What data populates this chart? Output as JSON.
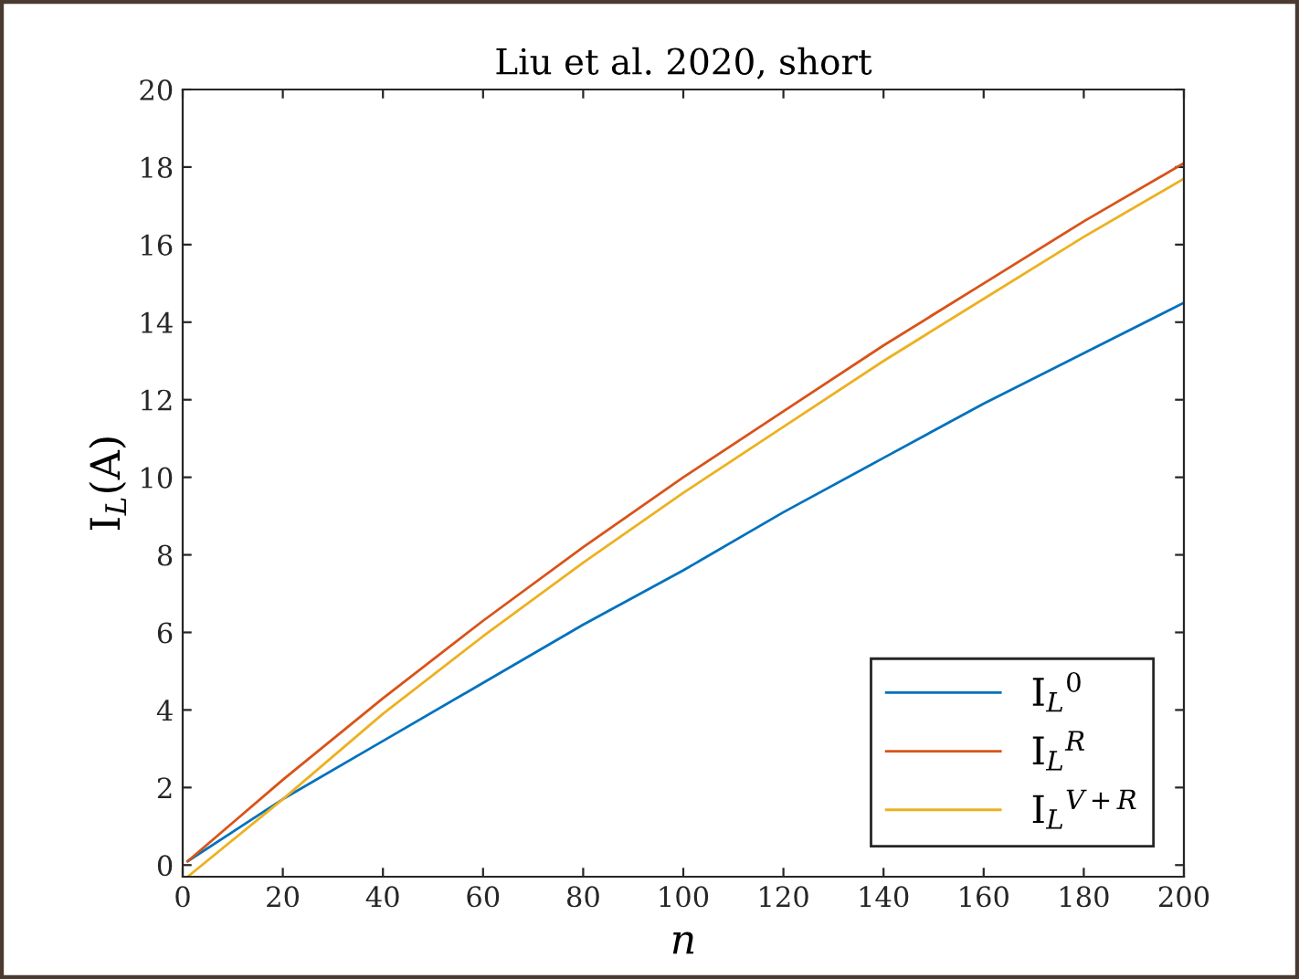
{
  "chart_data": {
    "type": "line",
    "title": "Liu et al. 2020, short",
    "xlabel": "n",
    "ylabel": "I$_{L}$(A)",
    "x": [
      1,
      20,
      40,
      60,
      80,
      100,
      120,
      140,
      160,
      180,
      200
    ],
    "series": [
      {
        "name": "I$_{L}$$^{0}$",
        "color": "#0072bd",
        "values": [
          0.1,
          1.7,
          3.2,
          4.7,
          6.2,
          7.6,
          9.1,
          10.5,
          11.9,
          13.2,
          14.5
        ]
      },
      {
        "name": "I$_{L}$$^{R}$",
        "color": "#d95319",
        "values": [
          0.1,
          2.2,
          4.3,
          6.3,
          8.2,
          10.0,
          11.7,
          13.4,
          15.0,
          16.6,
          18.1
        ]
      },
      {
        "name": "I$_{L}$$^{V+R}$",
        "color": "#edb120",
        "values": [
          -0.3,
          1.7,
          3.9,
          5.9,
          7.8,
          9.6,
          11.3,
          13.0,
          14.6,
          16.2,
          17.7
        ]
      }
    ],
    "xlim": [
      0,
      200
    ],
    "ylim": [
      -0.3,
      20
    ],
    "xticks": [
      0,
      20,
      40,
      60,
      80,
      100,
      120,
      140,
      160,
      180,
      200
    ],
    "yticks": [
      0,
      2,
      4,
      6,
      8,
      10,
      12,
      14,
      16,
      18,
      20
    ],
    "legend": "bottom right",
    "grid": false,
    "marker": "none",
    "line_style": "solid"
  }
}
